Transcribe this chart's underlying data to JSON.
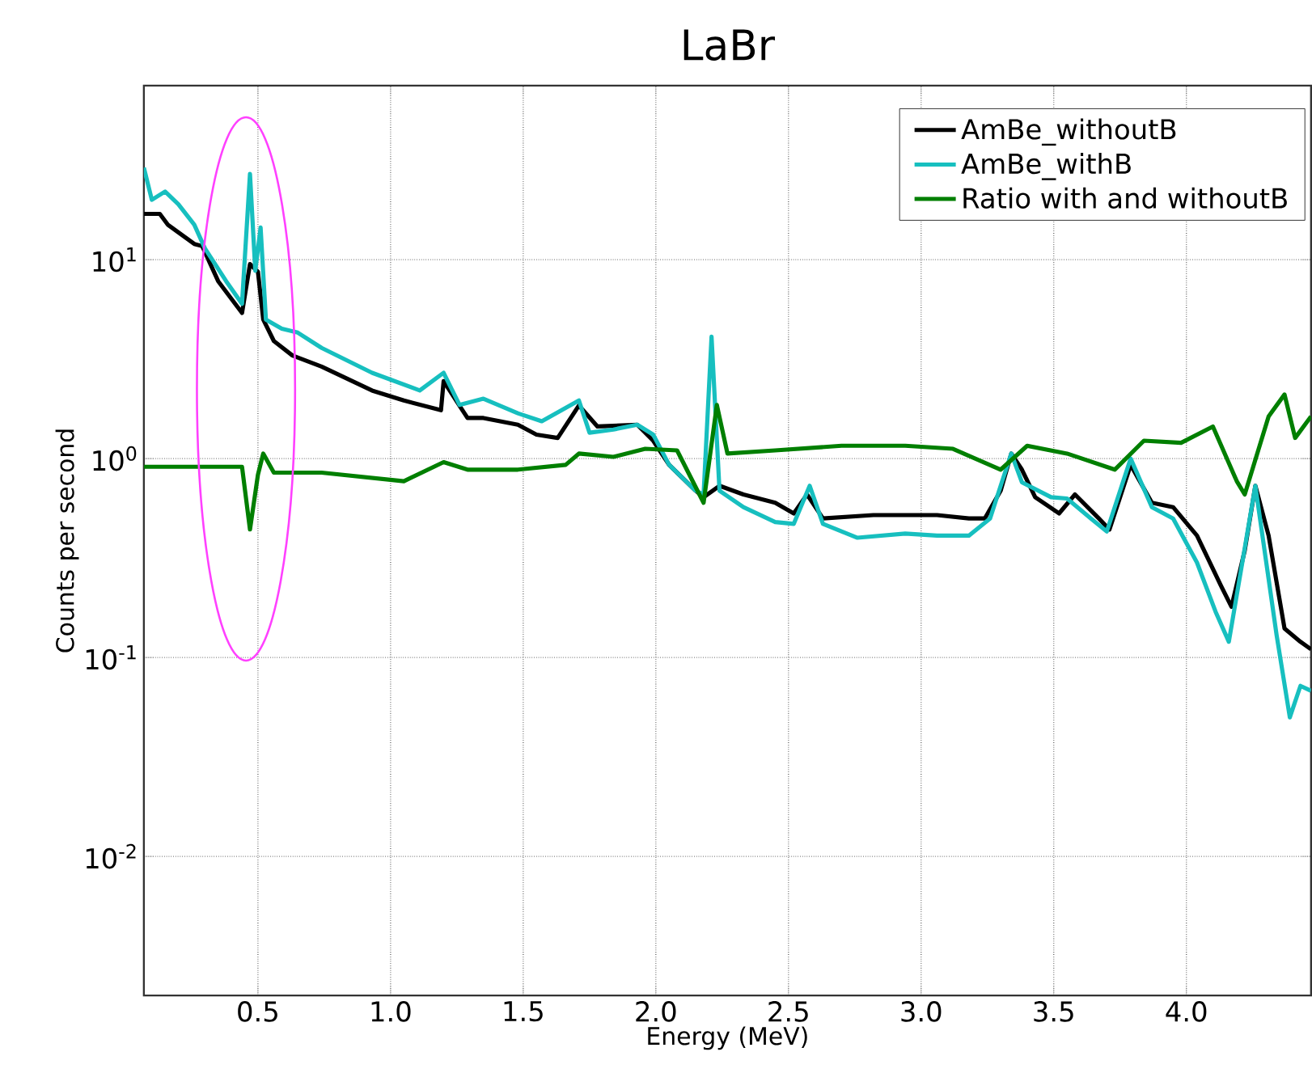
{
  "chart_data": {
    "type": "line",
    "title": "LaBr",
    "xlabel": "Energy (MeV)",
    "ylabel": "Counts per second",
    "log": "y",
    "grid": true,
    "legend": "top right",
    "line_style": "solid",
    "marker": "none",
    "xlim": [
      0.07,
      4.47
    ],
    "ylim": [
      0.002,
      75
    ],
    "xticks": [
      {
        "value": 0.5,
        "label": "0.5"
      },
      {
        "value": 1.0,
        "label": "1.0"
      },
      {
        "value": 1.5,
        "label": "1.5"
      },
      {
        "value": 2.0,
        "label": "2.0"
      },
      {
        "value": 2.5,
        "label": "2.5"
      },
      {
        "value": 3.0,
        "label": "3.0"
      },
      {
        "value": 3.5,
        "label": "3.5"
      },
      {
        "value": 4.0,
        "label": "4.0"
      }
    ],
    "yticks": [
      {
        "value": 0.01,
        "label": "10$^{-2}$"
      },
      {
        "value": 0.1,
        "label": "10$^{-1}$"
      },
      {
        "value": 1,
        "label": "10$^{0}$"
      },
      {
        "value": 10,
        "label": "10$^{1}$"
      }
    ],
    "series": [
      {
        "name": "AmBe_withoutB",
        "color": "#000000",
        "x": [
          0.07,
          0.13,
          0.16,
          0.26,
          0.29,
          0.35,
          0.44,
          0.47,
          0.5,
          0.52,
          0.56,
          0.63,
          0.74,
          0.93,
          1.05,
          1.19,
          1.2,
          1.29,
          1.35,
          1.48,
          1.55,
          1.63,
          1.71,
          1.78,
          1.93,
          1.99,
          2.05,
          2.15,
          2.18,
          2.21,
          2.24,
          2.33,
          2.45,
          2.52,
          2.57,
          2.63,
          2.82,
          3.06,
          3.18,
          3.24,
          3.3,
          3.34,
          3.38,
          3.43,
          3.52,
          3.58,
          3.67,
          3.71,
          3.79,
          3.87,
          3.95,
          4.04,
          4.13,
          4.17,
          4.22,
          4.26,
          4.31,
          4.37,
          4.43,
          4.47
        ],
        "values": [
          17,
          17,
          15,
          12,
          11.7,
          7.8,
          5.4,
          9.5,
          8.7,
          5.0,
          3.9,
          3.3,
          2.9,
          2.2,
          1.96,
          1.75,
          2.45,
          1.6,
          1.6,
          1.48,
          1.32,
          1.27,
          1.85,
          1.45,
          1.48,
          1.23,
          0.93,
          0.69,
          0.64,
          null,
          0.73,
          0.66,
          0.6,
          0.53,
          0.66,
          0.5,
          0.52,
          0.52,
          0.5,
          0.5,
          0.69,
          1.06,
          0.88,
          0.64,
          0.53,
          0.66,
          0.5,
          0.44,
          0.93,
          0.6,
          0.57,
          0.41,
          0.23,
          0.18,
          0.345,
          0.73,
          0.41,
          0.14,
          0.12,
          0.11
        ]
      },
      {
        "name": "AmBe_withB",
        "color": "#17bfbf",
        "x": [
          0.07,
          0.1,
          0.15,
          0.2,
          0.26,
          0.3,
          0.38,
          0.44,
          0.47,
          0.49,
          0.51,
          0.53,
          0.59,
          0.65,
          0.74,
          0.93,
          1.11,
          1.2,
          1.26,
          1.35,
          1.48,
          1.57,
          1.71,
          1.75,
          1.84,
          1.93,
          1.99,
          2.05,
          2.15,
          2.18,
          2.21,
          2.24,
          2.33,
          2.45,
          2.52,
          2.58,
          2.63,
          2.76,
          2.94,
          3.06,
          3.18,
          3.26,
          3.3,
          3.34,
          3.38,
          3.49,
          3.55,
          3.64,
          3.7,
          3.79,
          3.87,
          3.95,
          4.04,
          4.11,
          4.16,
          4.26,
          4.34,
          4.39,
          4.43,
          4.47
        ],
        "values": [
          29,
          20,
          22,
          19,
          15,
          11.4,
          7.8,
          6.0,
          27,
          8.8,
          14.5,
          5.0,
          4.5,
          4.3,
          3.6,
          2.7,
          2.2,
          2.7,
          1.86,
          2.0,
          1.69,
          1.54,
          1.96,
          1.35,
          1.4,
          1.48,
          1.32,
          0.93,
          0.69,
          0.66,
          4.1,
          0.69,
          0.57,
          0.48,
          0.47,
          0.73,
          0.47,
          0.4,
          0.42,
          0.41,
          0.41,
          0.5,
          0.73,
          1.06,
          0.76,
          0.64,
          0.63,
          0.5,
          0.43,
          1.0,
          0.57,
          0.5,
          0.3,
          0.17,
          0.12,
          0.73,
          0.13,
          0.05,
          0.072,
          0.068
        ]
      },
      {
        "name": "Ratio with and withoutB",
        "color": "#007f00",
        "x": [
          0.07,
          0.26,
          0.44,
          0.47,
          0.5,
          0.52,
          0.56,
          0.74,
          1.05,
          1.2,
          1.29,
          1.48,
          1.66,
          1.71,
          1.84,
          1.96,
          2.08,
          2.18,
          2.23,
          2.27,
          2.45,
          2.7,
          2.94,
          3.12,
          3.3,
          3.4,
          3.55,
          3.73,
          3.84,
          3.98,
          4.1,
          4.19,
          4.22,
          4.31,
          4.37,
          4.41,
          4.47
        ],
        "values": [
          0.91,
          0.91,
          0.91,
          0.44,
          0.83,
          1.06,
          0.85,
          0.85,
          0.77,
          0.96,
          0.88,
          0.88,
          0.93,
          1.06,
          1.02,
          1.12,
          1.1,
          0.6,
          1.86,
          1.06,
          1.1,
          1.16,
          1.16,
          1.12,
          0.88,
          1.16,
          1.06,
          0.88,
          1.23,
          1.2,
          1.45,
          0.77,
          0.66,
          1.63,
          2.1,
          1.27,
          1.63
        ]
      }
    ]
  }
}
